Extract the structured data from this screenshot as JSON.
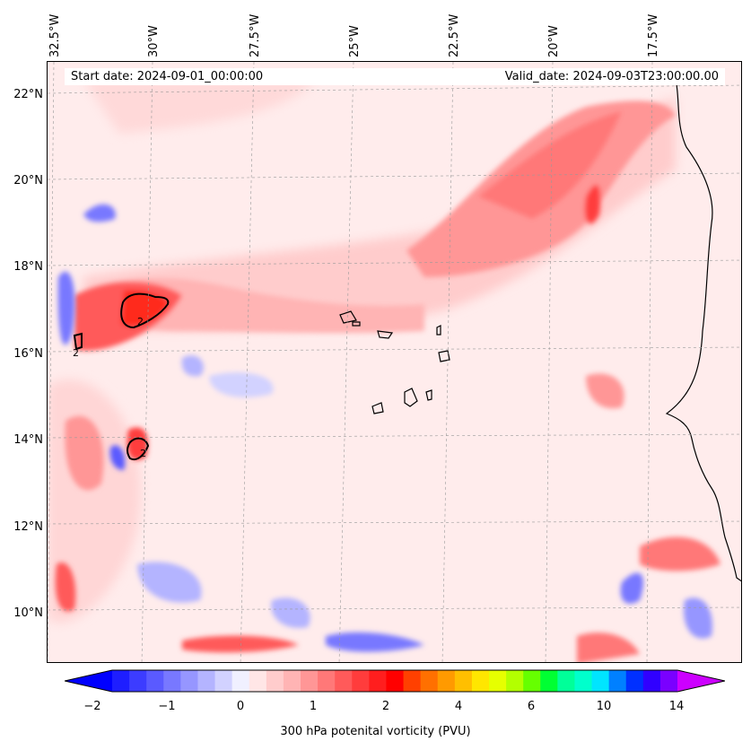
{
  "map": {
    "longitude_labels": [
      "32.5°W",
      "30°W",
      "27.5°W",
      "25°W",
      "22.5°W",
      "20°W",
      "17.5°W"
    ],
    "latitude_labels": [
      "22°N",
      "20°N",
      "18°N",
      "16°N",
      "14°N",
      "12°N",
      "10°N"
    ],
    "contour_labels": [
      "2",
      "2",
      "2"
    ]
  },
  "header": {
    "start_date": "Start date: 2024-09-01_00:00:00",
    "valid_date": "Valid_date: 2024-09-03T23:00:00.00"
  },
  "colorbar": {
    "tick_labels": [
      "−2",
      "−1",
      "0",
      "1",
      "2",
      "4",
      "6",
      "10",
      "14"
    ],
    "label": "300 hPa potenital vorticity (PVU)",
    "colors": [
      "#1e1eff",
      "#3c3cff",
      "#5a5aff",
      "#7878ff",
      "#9696ff",
      "#b4b4ff",
      "#d2d2ff",
      "#f0f0ff",
      "#ffe6e6",
      "#ffcccc",
      "#ffb4b4",
      "#ff9696",
      "#ff7878",
      "#ff5a5a",
      "#ff3c3c",
      "#ff1e1e",
      "#ff0000",
      "#ff4000",
      "#ff7000",
      "#ff9a00",
      "#ffbf00",
      "#ffe600",
      "#e6ff00",
      "#b3ff00",
      "#66ff00",
      "#00ff33",
      "#00ff99",
      "#00ffcc",
      "#00e5ff",
      "#0080ff",
      "#0030ff",
      "#3000ff",
      "#7a00ff"
    ],
    "extend_min_color": "#0000ff",
    "extend_max_color": "#cc00ff"
  }
}
